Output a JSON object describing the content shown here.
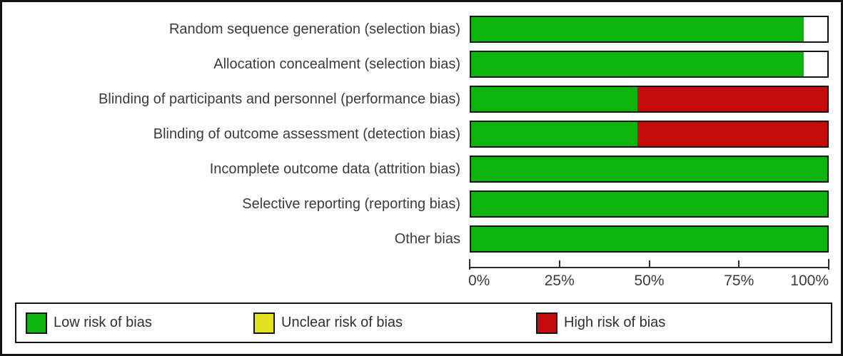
{
  "chart_data": {
    "type": "bar",
    "orientation": "horizontal",
    "categories": [
      "Random sequence generation (selection bias)",
      "Allocation concealment (selection bias)",
      "Blinding of participants and personnel (performance bias)",
      "Blinding of outcome assessment (detection bias)",
      "Incomplete outcome data (attrition bias)",
      "Selective reporting (reporting bias)",
      "Other bias"
    ],
    "series": [
      {
        "name": "Low risk of bias",
        "color": "#0cb40c",
        "values": [
          93.3,
          93.3,
          46.7,
          46.7,
          100,
          100,
          100
        ]
      },
      {
        "name": "Unclear risk of bias",
        "color": "#e2e21f",
        "values": [
          0,
          0,
          0,
          0,
          0,
          0,
          0
        ]
      },
      {
        "name": "High risk of bias",
        "color": "#c50b0b",
        "values": [
          0,
          0,
          53.3,
          53.3,
          0,
          0,
          0
        ]
      }
    ],
    "remainder_color": "#ffffff",
    "xlim": [
      0,
      100
    ],
    "x_ticks": [
      "0%",
      "25%",
      "50%",
      "75%",
      "100%"
    ],
    "x_tick_values": [
      0,
      25,
      50,
      75,
      100
    ],
    "grid": false,
    "legend_position": "bottom",
    "legend": [
      {
        "label": "Low risk of bias",
        "color": "#0cb40c"
      },
      {
        "label": "Unclear risk of bias",
        "color": "#e2e21f"
      },
      {
        "label": "High risk of bias",
        "color": "#c50b0b"
      }
    ]
  },
  "colors": {
    "background": "#ffffff",
    "frame_border": "#141414",
    "bar_border": "#141414",
    "axis": "#2e2e2e",
    "text": "#3b3b3b"
  }
}
